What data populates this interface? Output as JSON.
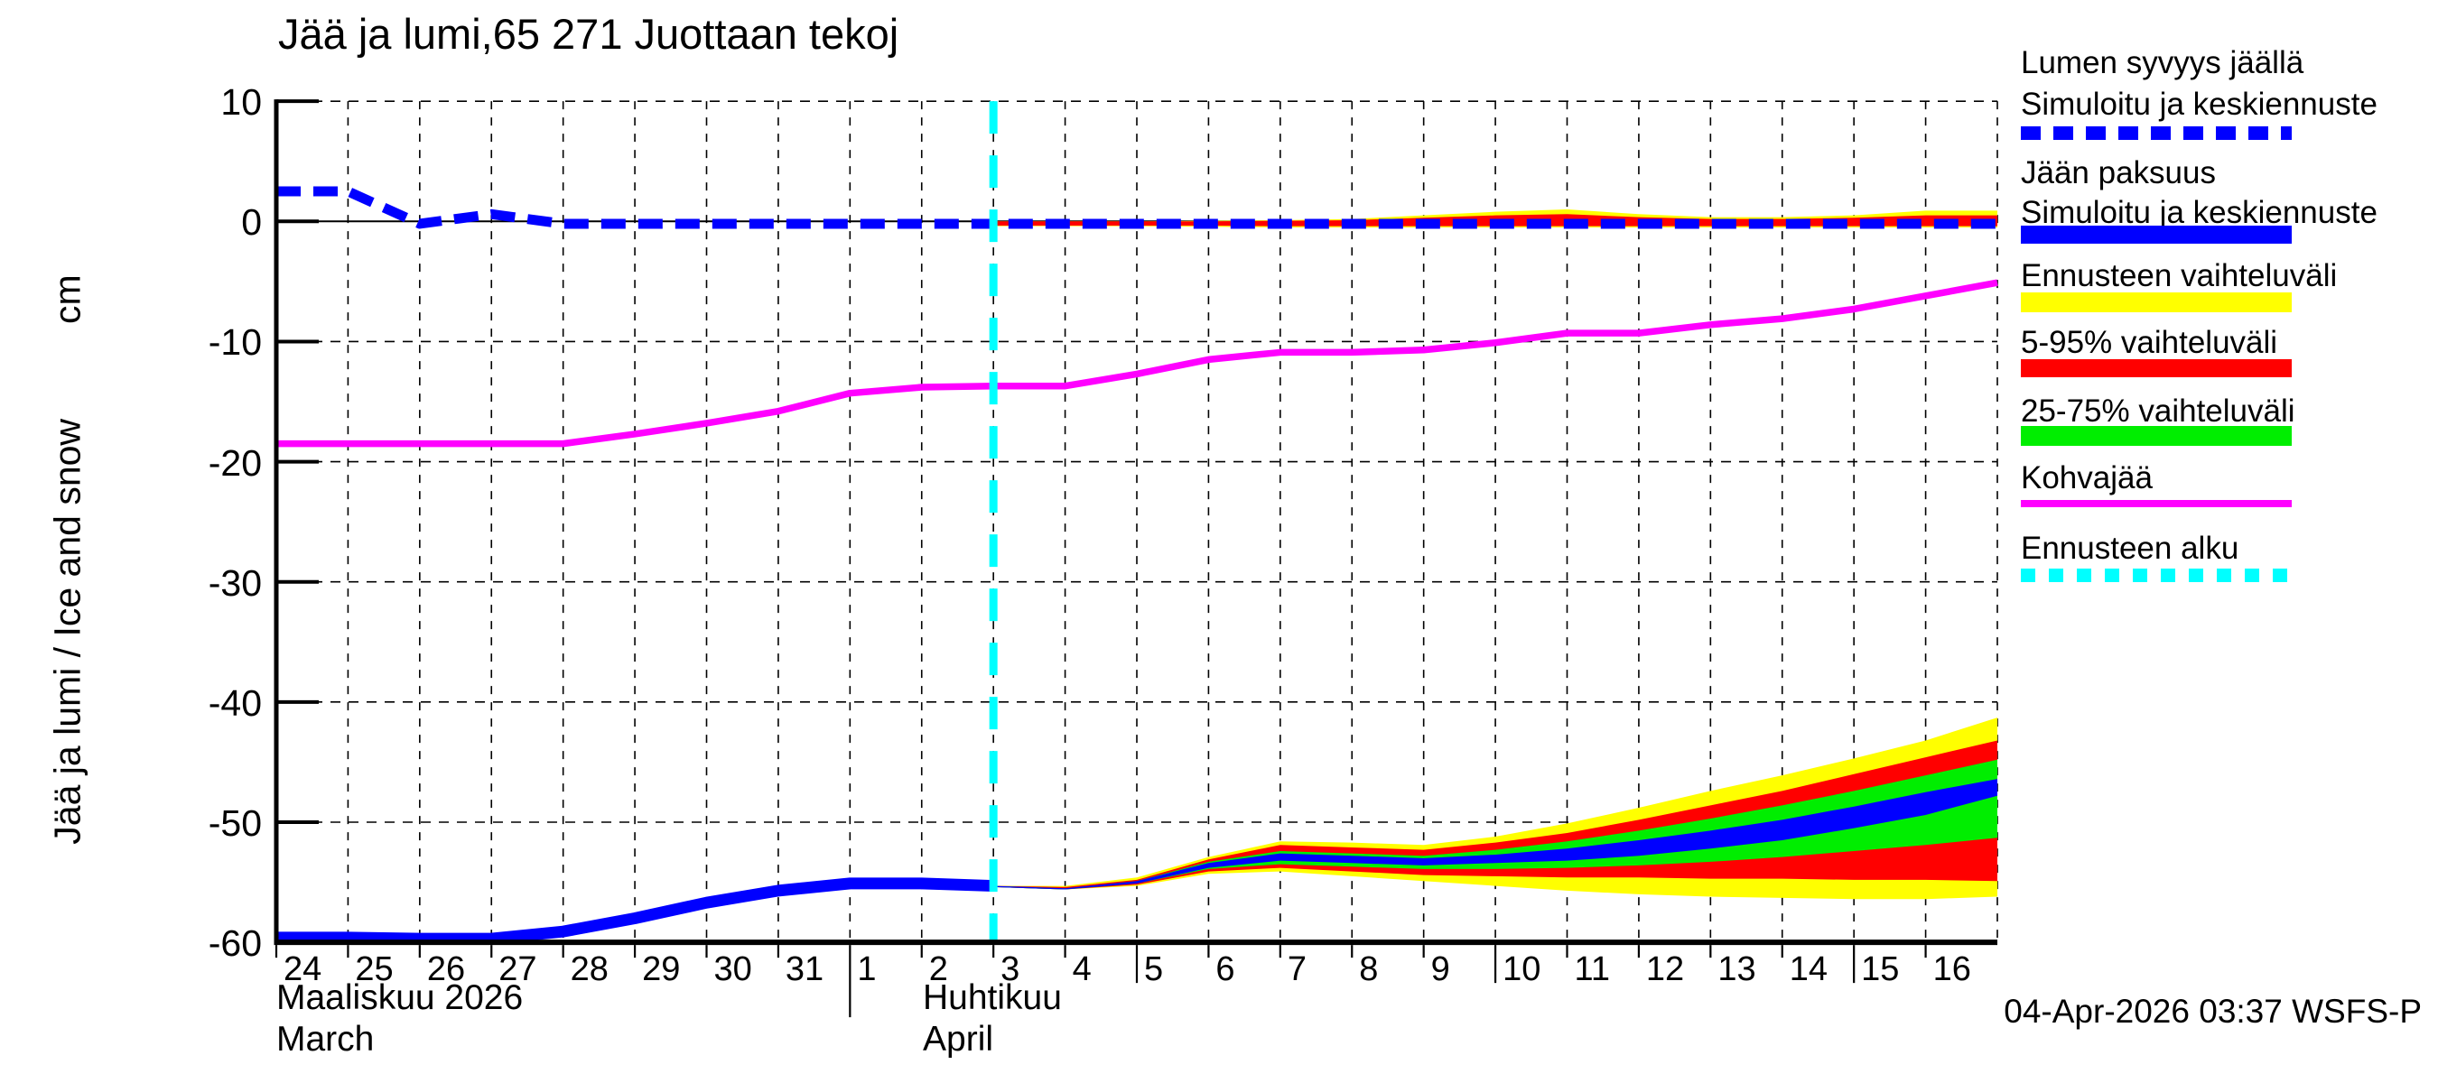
{
  "title": "Jää ja lumi,65 271 Juottaan tekoj",
  "y_axis": {
    "label": "Jää ja lumi / Ice and snow",
    "unit": "cm",
    "tick_labels": [
      "10",
      "0",
      "-10",
      "-20",
      "-30",
      "-40",
      "-50",
      "-60"
    ],
    "tick_values": [
      10,
      0,
      -10,
      -20,
      -30,
      -40,
      -50,
      -60
    ]
  },
  "x_axis": {
    "day_labels": [
      "24",
      "25",
      "26",
      "27",
      "28",
      "29",
      "30",
      "31",
      "1",
      "2",
      "3",
      "4",
      "5",
      "6",
      "7",
      "8",
      "9",
      "10",
      "11",
      "12",
      "13",
      "14",
      "15",
      "16"
    ],
    "month_left_fi": "Maaliskuu 2026",
    "month_left_en": "March",
    "month_right_fi": "Huhtikuu",
    "month_right_en": "April",
    "long_tick_offsets": [
      12,
      17,
      22
    ],
    "month_boundary_offset": 8
  },
  "footer": {
    "timestamp": "04-Apr-2026 03:37 WSFS-P"
  },
  "colors": {
    "blue": "#0000ff",
    "magenta": "#ff00ff",
    "cyan": "#00ffff",
    "yellow": "#ffff00",
    "red": "#ff0000",
    "green": "#00ee00",
    "black": "#000000",
    "background": "#ffffff"
  },
  "legend": {
    "items": [
      {
        "line1": "Lumen syvyys jäällä",
        "line2": "Simuloitu ja keskiennuste",
        "swatch": "dashed-line",
        "color": "#0000ff"
      },
      {
        "line1": "Jään paksuus",
        "line2": "Simuloitu ja keskiennuste",
        "swatch": "solid-bar",
        "color": "#0000ff"
      },
      {
        "line1": "Ennusteen vaihteluväli",
        "swatch": "solid-bar",
        "color": "#ffff00"
      },
      {
        "line1": "5-95% vaihteluväli",
        "swatch": "solid-bar",
        "color": "#ff0000"
      },
      {
        "line1": "25-75% vaihteluväli",
        "swatch": "solid-bar",
        "color": "#00ee00"
      },
      {
        "line1": "Kohvajää",
        "swatch": "thin-bar",
        "color": "#ff00ff"
      },
      {
        "line1": "Ennusteen alku",
        "swatch": "dashed-line",
        "color": "#00ffff"
      }
    ]
  },
  "chart_data": {
    "type": "line",
    "title": "Jää ja lumi,65 271 Juottaan tekoj",
    "ylabel": "Jää ja lumi / Ice and snow (cm)",
    "ylim": [
      -60,
      10
    ],
    "grid": true,
    "legend_position": "right-outside",
    "x_description": "day offset 0 = 24 March 2026, offset 24 = right edge (17 April 2026)",
    "x_tick_labels": [
      "24",
      "25",
      "26",
      "27",
      "28",
      "29",
      "30",
      "31",
      "1",
      "2",
      "3",
      "4",
      "5",
      "6",
      "7",
      "8",
      "9",
      "10",
      "11",
      "12",
      "13",
      "14",
      "15",
      "16"
    ],
    "forecast_start_offset": 10,
    "series": [
      {
        "name": "Lumen syvyys jäällä (simuloitu ja keskiennuste)",
        "style": "dashed",
        "color": "#0000ff",
        "values": [
          2.5,
          2.5,
          -0.2,
          0.6,
          -0.2,
          -0.2,
          -0.2,
          -0.2,
          -0.2,
          -0.2,
          -0.2,
          -0.2,
          -0.2,
          -0.2,
          -0.2,
          -0.2,
          -0.2,
          -0.2,
          -0.2,
          -0.2,
          -0.2,
          -0.2,
          -0.2,
          -0.2,
          -0.2
        ]
      },
      {
        "name": "Jään paksuus (simuloitu ja keskiennuste)",
        "style": "solid",
        "color": "#0000ff",
        "values": [
          -59.6,
          -59.6,
          -59.7,
          -59.7,
          -59.1,
          -58.0,
          -56.7,
          -55.7,
          -55.1,
          -55.1,
          -55.3,
          -55.5,
          -55.0,
          -53.6,
          -52.9,
          -53.1,
          -53.3,
          -53.1,
          -52.8,
          -52.2,
          -51.4,
          -50.6,
          -49.5,
          -48.4,
          -47.2
        ]
      },
      {
        "name": "Kohvajää",
        "style": "solid",
        "color": "#ff00ff",
        "values": [
          -18.5,
          -18.5,
          -18.5,
          -18.5,
          -18.5,
          -17.7,
          -16.8,
          -15.8,
          -14.3,
          -13.8,
          -13.7,
          -13.7,
          -12.7,
          -11.5,
          -10.9,
          -10.9,
          -10.7,
          -10.1,
          -9.3,
          -9.3,
          -8.6,
          -8.1,
          -7.3,
          -6.2,
          -5.1
        ]
      }
    ],
    "ice_forecast_bands": {
      "start_offset": 10,
      "yellow_top": [
        -55.3,
        -55.3,
        -54.6,
        -52.9,
        -51.6,
        -51.7,
        -51.9,
        -51.2,
        -50.1,
        -48.8,
        -47.4,
        -46.1,
        -44.7,
        -43.2,
        -41.3
      ],
      "red_top": [
        -55.3,
        -55.4,
        -54.8,
        -53.1,
        -51.9,
        -52.1,
        -52.3,
        -51.7,
        -50.9,
        -49.8,
        -48.6,
        -47.4,
        -46.0,
        -44.6,
        -43.2
      ],
      "green_top": [
        -55.3,
        -55.5,
        -54.9,
        -53.3,
        -52.4,
        -52.6,
        -52.8,
        -52.3,
        -51.6,
        -50.7,
        -49.7,
        -48.6,
        -47.4,
        -46.1,
        -44.8
      ],
      "blue_top": [
        -55.3,
        -55.5,
        -54.9,
        -53.4,
        -52.6,
        -52.8,
        -53.0,
        -52.7,
        -52.2,
        -51.5,
        -50.7,
        -49.8,
        -48.7,
        -47.5,
        -46.4
      ],
      "blue_bottom": [
        -55.4,
        -55.6,
        -55.1,
        -53.8,
        -53.2,
        -53.4,
        -53.6,
        -53.4,
        -53.2,
        -52.8,
        -52.2,
        -51.5,
        -50.5,
        -49.4,
        -47.8
      ],
      "green_bottom": [
        -55.4,
        -55.6,
        -55.1,
        -53.9,
        -53.5,
        -53.7,
        -53.9,
        -53.9,
        -53.8,
        -53.6,
        -53.3,
        -52.9,
        -52.4,
        -51.9,
        -51.3
      ],
      "red_bottom": [
        -55.4,
        -55.6,
        -55.2,
        -54.1,
        -53.8,
        -54.1,
        -54.4,
        -54.5,
        -54.6,
        -54.6,
        -54.7,
        -54.7,
        -54.8,
        -54.8,
        -54.9
      ],
      "yellow_bottom": [
        -55.4,
        -55.6,
        -55.3,
        -54.3,
        -54.1,
        -54.5,
        -54.9,
        -55.3,
        -55.7,
        -56.0,
        -56.2,
        -56.3,
        -56.4,
        -56.4,
        -56.2
      ]
    },
    "snow_forecast_bands": {
      "start_offset": 10,
      "yellow_top": [
        0,
        0,
        0,
        0.05,
        0.1,
        0.2,
        0.5,
        0.8,
        1.0,
        0.6,
        0.35,
        0.35,
        0.5,
        0.9,
        0.9
      ],
      "yellow_bottom": [
        -0.4,
        -0.4,
        -0.4,
        -0.45,
        -0.5,
        -0.5,
        -0.5,
        -0.5,
        -0.5,
        -0.5,
        -0.5,
        -0.5,
        -0.5,
        -0.5,
        -0.5
      ],
      "red_top": [
        0,
        0,
        0,
        0,
        0.05,
        0.1,
        0.3,
        0.5,
        0.6,
        0.35,
        0.2,
        0.2,
        0.3,
        0.5,
        0.5
      ],
      "red_bottom": [
        -0.35,
        -0.35,
        -0.35,
        -0.35,
        -0.4,
        -0.4,
        -0.4,
        -0.4,
        -0.4,
        -0.4,
        -0.4,
        -0.4,
        -0.4,
        -0.4,
        -0.4
      ]
    }
  }
}
